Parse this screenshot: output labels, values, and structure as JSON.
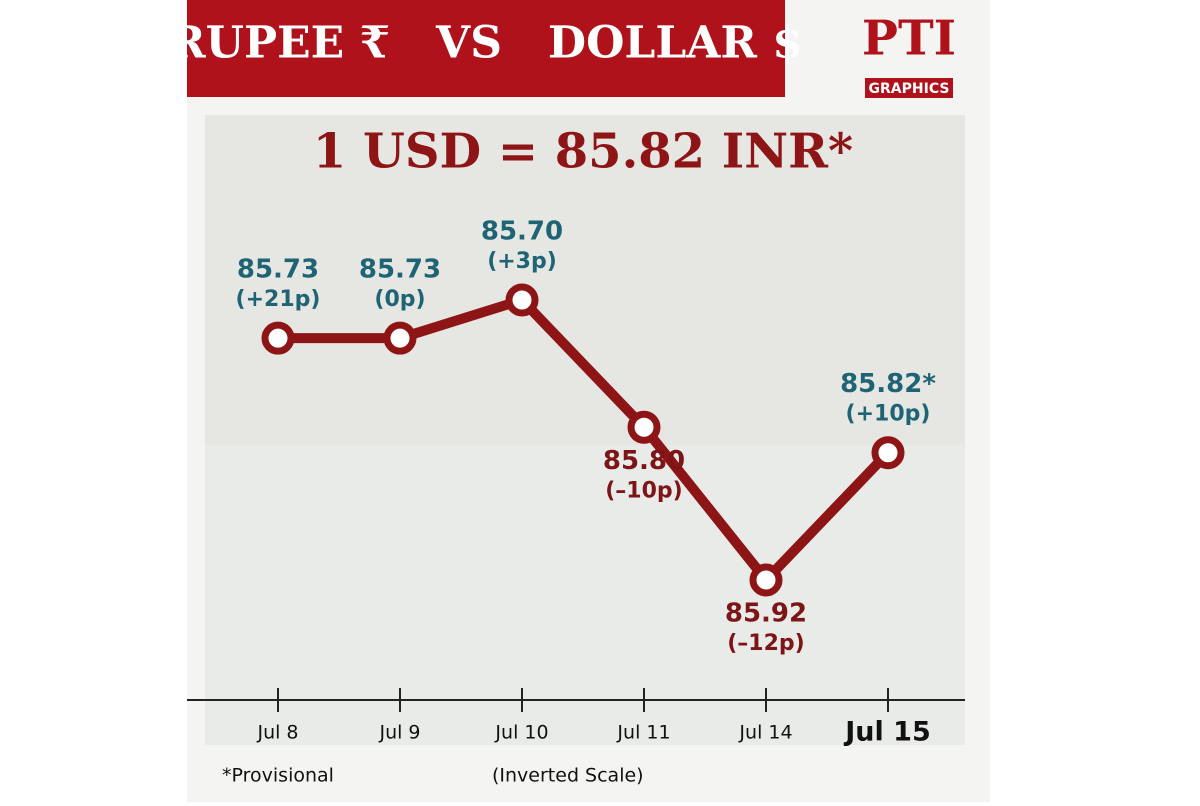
{
  "banner": {
    "title": "RUPEE ₹   VS   DOLLAR $",
    "logo": "PTI",
    "logo_sub": "GRAPHICS"
  },
  "chart_data": {
    "type": "line",
    "headline": "1 USD = 85.82 INR*",
    "categories": [
      "Jul 8",
      "Jul 9",
      "Jul 10",
      "Jul 11",
      "Jul 14",
      "Jul 15"
    ],
    "values": [
      85.73,
      85.73,
      85.7,
      85.8,
      85.92,
      85.82
    ],
    "value_labels": [
      "85.73",
      "85.73",
      "85.70",
      "85.80",
      "85.92",
      "85.82*"
    ],
    "changes": [
      21,
      0,
      3,
      -10,
      -12,
      10
    ],
    "change_labels": [
      "(+21p)",
      "(0p)",
      "(+3p)",
      "(–10p)",
      "(–12p)",
      "(+10p)"
    ],
    "color": "#8e1516",
    "up_color": "#1f6475",
    "down_color": "#7d1416",
    "inverted": true,
    "footnote": "*Provisional",
    "scale_note": "(Inverted Scale)"
  }
}
